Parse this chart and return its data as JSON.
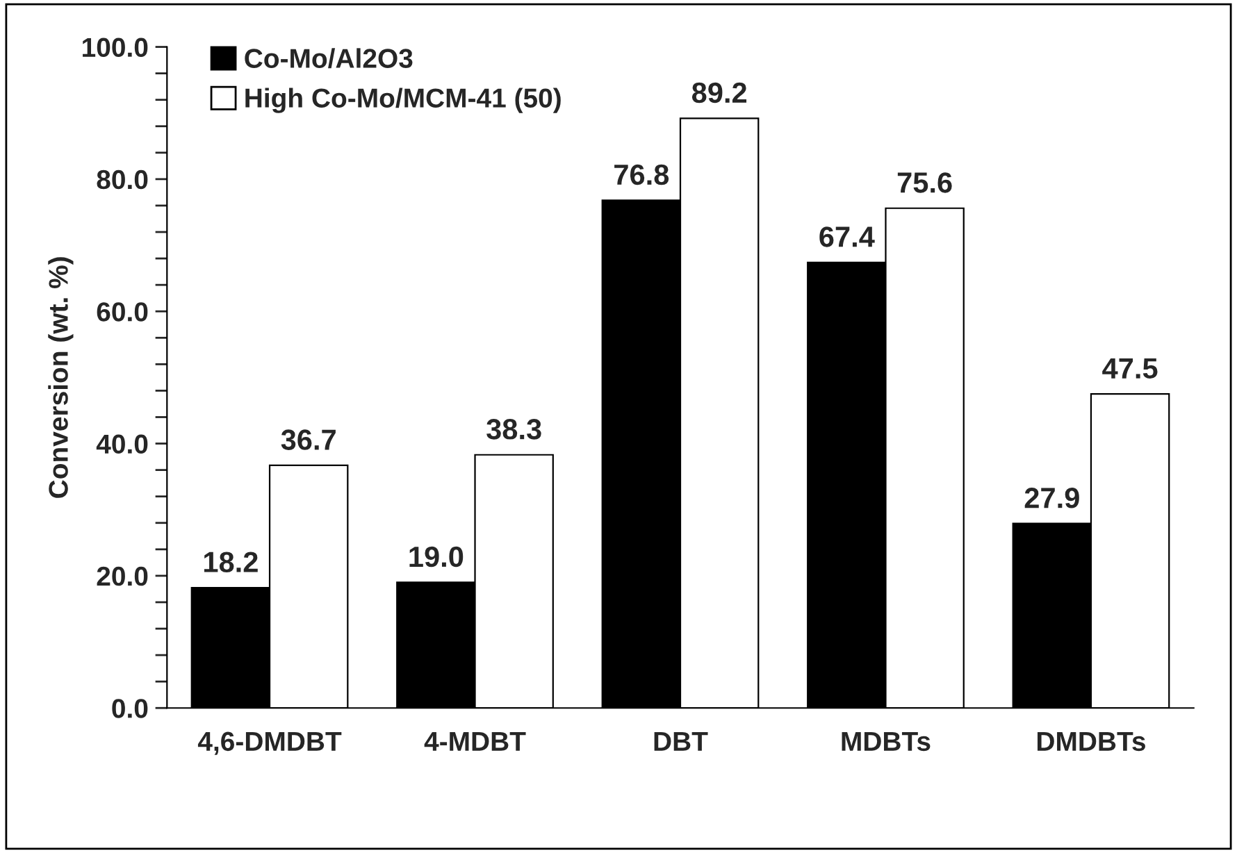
{
  "chart_data": {
    "type": "bar",
    "ylabel": "Conversion (wt. %)",
    "categories": [
      "4,6-DMDBT",
      "4-MDBT",
      "DBT",
      "MDBTs",
      "DMDBTs"
    ],
    "series": [
      {
        "name": "Co-Mo/Al2O3",
        "color": "#000000",
        "values": [
          18.2,
          19.0,
          76.8,
          67.4,
          27.9
        ],
        "value_labels": [
          "18.2",
          "19.0",
          "76.8",
          "67.4",
          "27.9"
        ]
      },
      {
        "name": "High Co-Mo/MCM-41 (50)",
        "color": "#ffffff",
        "values": [
          36.7,
          38.3,
          89.2,
          75.6,
          47.5
        ],
        "value_labels": [
          "36.7",
          "38.3",
          "89.2",
          "75.6",
          "47.5"
        ]
      }
    ],
    "ylim": [
      0,
      100
    ],
    "yticks": [
      {
        "value": 0,
        "label": "0.0"
      },
      {
        "value": 4,
        "label": null
      },
      {
        "value": 8,
        "label": null
      },
      {
        "value": 12,
        "label": null
      },
      {
        "value": 16,
        "label": null
      },
      {
        "value": 20,
        "label": "20.0"
      },
      {
        "value": 24,
        "label": null
      },
      {
        "value": 28,
        "label": null
      },
      {
        "value": 32,
        "label": null
      },
      {
        "value": 36,
        "label": null
      },
      {
        "value": 40,
        "label": "40.0"
      },
      {
        "value": 44,
        "label": null
      },
      {
        "value": 48,
        "label": null
      },
      {
        "value": 52,
        "label": null
      },
      {
        "value": 56,
        "label": null
      },
      {
        "value": 60,
        "label": "60.0"
      },
      {
        "value": 64,
        "label": null
      },
      {
        "value": 68,
        "label": null
      },
      {
        "value": 72,
        "label": null
      },
      {
        "value": 76,
        "label": null
      },
      {
        "value": 80,
        "label": "80.0"
      },
      {
        "value": 84,
        "label": null
      },
      {
        "value": 88,
        "label": null
      },
      {
        "value": 92,
        "label": null
      },
      {
        "value": 96,
        "label": null
      },
      {
        "value": 100,
        "label": "100.0"
      }
    ],
    "grid": false,
    "legend": "top left"
  }
}
